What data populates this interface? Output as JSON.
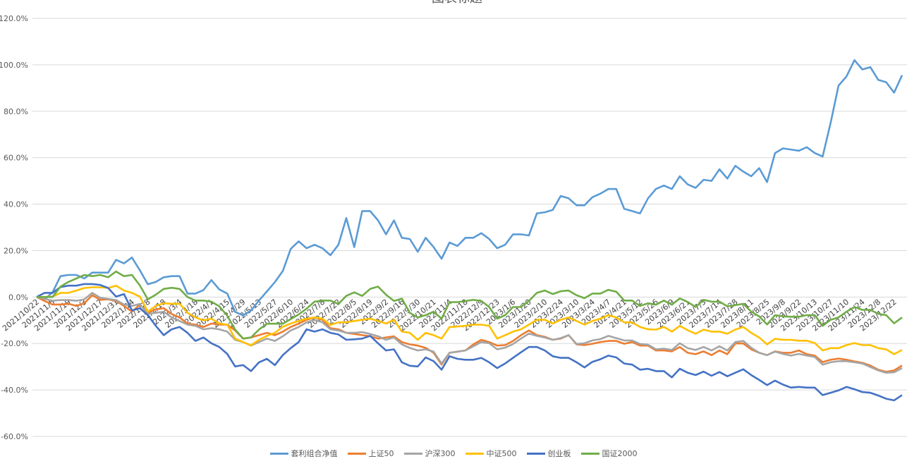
{
  "chart_data": {
    "type": "line",
    "title": "图表标题",
    "xlabel": "",
    "ylabel": "",
    "ylim": [
      -60,
      120
    ],
    "y_ticks": [
      "-60.0%",
      "-40.0%",
      "-20.0%",
      "0.0%",
      "20.0%",
      "40.0%",
      "60.0%",
      "80.0%",
      "100.0%",
      "120.0%"
    ],
    "y_tick_values": [
      -60,
      -40,
      -20,
      0,
      20,
      40,
      60,
      80,
      100,
      120
    ],
    "grid": true,
    "legend_position": "bottom",
    "categories": [
      "2021/10/22",
      "",
      "2021/11/5",
      "",
      "2021/11/19",
      "",
      "2021/12/3",
      "",
      "2021/12/17",
      "",
      "2021/12/31",
      "",
      "2022/1/14",
      "",
      "2022/1/28",
      "",
      "2022/2/18",
      "",
      "2022/3/4",
      "",
      "2022/3/18",
      "",
      "2022/4/1",
      "",
      "2022/4/15",
      "",
      "2022/4/29",
      "",
      "2022/5/13",
      "",
      "2022/5/27",
      "",
      "2022/6/10",
      "",
      "2022/6/24",
      "",
      "2022/7/8",
      "",
      "2022/7/22",
      "",
      "2022/8/5",
      "",
      "2022/8/19",
      "",
      "2022/9/2",
      "",
      "2022/9/16",
      "",
      "2022/9/30",
      "",
      "2022/10/21",
      "",
      "2022/11/4",
      "",
      "2022/11/18",
      "",
      "2022/12/9",
      "",
      "2022/12/23",
      "",
      "2023/1/6",
      "",
      "2023/1/20",
      "",
      "2023/2/10",
      "",
      "2023/2/24",
      "",
      "2023/3/10",
      "",
      "2023/3/24",
      "",
      "2023/4/7",
      "",
      "2023/4/21",
      "",
      "2023/5/12",
      "",
      "2023/5/26",
      "",
      "2023/6/9",
      "",
      "2023/6/21",
      "",
      "2023/7/3",
      "",
      "2023/7/14",
      "",
      "2023/7/28",
      "",
      "2023/8/11",
      "",
      "2023/8/25",
      "",
      "2023/9/8",
      "",
      "2023/9/22",
      "",
      "2023/10/13",
      "",
      "2023/10/27",
      "",
      "2023/11/10",
      "",
      "2023/11/24",
      "",
      "2023/12/8",
      "",
      "2023/12/22",
      ""
    ],
    "series": [
      {
        "name": "套利组合净值",
        "color": "#5B9BD5",
        "values": [
          0,
          -1,
          2,
          9,
          9.5,
          9.5,
          8,
          10.5,
          10.5,
          10.5,
          16,
          14.5,
          17,
          11.5,
          5.5,
          6.5,
          8.5,
          9,
          9,
          1.5,
          1.5,
          3,
          7.3,
          3.3,
          1.5,
          -6.4,
          -7.9,
          -5.8,
          -1.5,
          2.4,
          6.4,
          11.2,
          20.7,
          24,
          21,
          22.5,
          21,
          18,
          22.5,
          34,
          21.5,
          37,
          37,
          33,
          27,
          33,
          25.5,
          25,
          19.5,
          25.5,
          21.5,
          16.5,
          23.5,
          22,
          25.5,
          25.5,
          27.5,
          25,
          21,
          22.5,
          27,
          27,
          26.5,
          36,
          36.5,
          37.5,
          43.5,
          42.5,
          39.5,
          39.5,
          43,
          44.5,
          46.5,
          46.5,
          38,
          37,
          36,
          42.5,
          46.5,
          48,
          46.5,
          52,
          48.5,
          47,
          50.5,
          50,
          55,
          51,
          56.5,
          54,
          52,
          55.5,
          49.5,
          62,
          64,
          63.5,
          63,
          64.5,
          62,
          60.5,
          75,
          91,
          95,
          102,
          98,
          99,
          93.5,
          92.5,
          88,
          95.5
        ]
      },
      {
        "name": "上证50",
        "color": "#ED7D31",
        "values": [
          0,
          -1.7,
          -3.2,
          -3.2,
          -2.9,
          -3.8,
          -2.7,
          0.8,
          -1.2,
          -1,
          -1.7,
          -3.8,
          -6.3,
          -3.2,
          -6.8,
          -5.3,
          -4.8,
          -7.3,
          -8.8,
          -11.4,
          -11.9,
          -12.9,
          -11.4,
          -11.9,
          -11.9,
          -14.4,
          -17.9,
          -17.4,
          -16.4,
          -15.4,
          -16.4,
          -14.9,
          -12.9,
          -11.4,
          -9.8,
          -8.8,
          -9.8,
          -13.4,
          -13.9,
          -15.4,
          -15.9,
          -16.4,
          -16.9,
          -17.9,
          -17.4,
          -16.9,
          -19.4,
          -20.4,
          -20.9,
          -21.9,
          -24,
          -29.1,
          -24,
          -23.5,
          -23,
          -20.4,
          -18.4,
          -19.4,
          -20.9,
          -20.7,
          -18.9,
          -16.4,
          -14.4,
          -16.4,
          -17.1,
          -18.4,
          -17.9,
          -16.4,
          -20.4,
          -20.7,
          -20.1,
          -19.4,
          -18.9,
          -18.9,
          -20.1,
          -19.4,
          -20.9,
          -20.9,
          -23,
          -23,
          -23.4,
          -21.5,
          -24,
          -24.6,
          -23.4,
          -25,
          -23,
          -24.6,
          -20,
          -20,
          -22.5,
          -24,
          -25,
          -23.4,
          -24,
          -24,
          -23,
          -24.6,
          -25.2,
          -28,
          -27,
          -26.5,
          -27,
          -27.7,
          -28.3,
          -29.5,
          -31.3,
          -32.2,
          -31.6,
          -29.5
        ]
      },
      {
        "name": "沪深300",
        "color": "#A5A5A5",
        "values": [
          0,
          -0.8,
          -1.6,
          -1.3,
          -1.3,
          -1.6,
          -1,
          1.8,
          -0.3,
          -0.8,
          -1.3,
          -3.2,
          -3.8,
          -3,
          -7.3,
          -6.8,
          -6.3,
          -8.8,
          -10.3,
          -11.9,
          -12.4,
          -13.9,
          -13.4,
          -13.9,
          -14.9,
          -18.4,
          -19.4,
          -20.9,
          -19.4,
          -17.9,
          -18.9,
          -16.9,
          -14.4,
          -12.9,
          -10.9,
          -9.8,
          -10.9,
          -13.9,
          -14.4,
          -15.4,
          -15.4,
          -15.1,
          -15.9,
          -16.9,
          -18.4,
          -17.4,
          -20.4,
          -21.9,
          -23,
          -22.5,
          -23.5,
          -28.6,
          -24,
          -23.5,
          -23,
          -21.2,
          -19.4,
          -19.9,
          -22.5,
          -21.8,
          -20.2,
          -17.9,
          -15.7,
          -16.7,
          -17.4,
          -18.4,
          -17.7,
          -16.4,
          -20.2,
          -19.9,
          -18.7,
          -18.1,
          -16.7,
          -17.7,
          -18.7,
          -18.7,
          -20.2,
          -20.5,
          -22.5,
          -22.2,
          -22.8,
          -19.9,
          -22,
          -22.8,
          -21.5,
          -23,
          -21.2,
          -23,
          -19.4,
          -18.9,
          -21.8,
          -24,
          -25,
          -23.5,
          -24.5,
          -25.2,
          -24.5,
          -25.2,
          -25.8,
          -29.1,
          -28.1,
          -27.6,
          -27.6,
          -28.1,
          -28.6,
          -30.1,
          -31.6,
          -32.6,
          -32.4,
          -30.6
        ]
      },
      {
        "name": "中证500",
        "color": "#FFC000",
        "values": [
          0,
          0,
          0.2,
          1.8,
          1.8,
          2.8,
          3.9,
          4.2,
          4.2,
          3.9,
          4.9,
          2.8,
          1.8,
          0.2,
          -6.3,
          -3.8,
          -2.7,
          -2.9,
          -2.9,
          -6.8,
          -8.8,
          -10,
          -9.3,
          -11.4,
          -11.9,
          -17.9,
          -19.4,
          -20.8,
          -18.4,
          -16.7,
          -15.4,
          -12.8,
          -11.4,
          -10.3,
          -9.3,
          -8.8,
          -9.3,
          -12,
          -10.9,
          -10.9,
          -10.3,
          -9.8,
          -9.3,
          -10.3,
          -11.4,
          -9.8,
          -14.9,
          -15.4,
          -18.4,
          -15.4,
          -16.4,
          -17.9,
          -12.9,
          -12.7,
          -12.4,
          -11.9,
          -11.9,
          -12.4,
          -17.9,
          -16.4,
          -14.9,
          -13.9,
          -11.9,
          -9.8,
          -9.8,
          -11.4,
          -9.8,
          -8.8,
          -10.3,
          -11.9,
          -10.3,
          -9.3,
          -7.8,
          -8.8,
          -10.9,
          -10.9,
          -12.9,
          -13.9,
          -14,
          -12.9,
          -14.9,
          -12.4,
          -14.3,
          -15.8,
          -14,
          -14.9,
          -14.9,
          -15.8,
          -14,
          -12.9,
          -15.4,
          -17.4,
          -20.4,
          -18,
          -18.4,
          -18.4,
          -18.8,
          -18.8,
          -19.8,
          -23,
          -22,
          -22,
          -20.7,
          -19.8,
          -20.7,
          -20.7,
          -22,
          -22.5,
          -24.6,
          -22.8
        ]
      },
      {
        "name": "创业板",
        "color": "#4472C4",
        "values": [
          0,
          1.8,
          1.8,
          4.3,
          4.9,
          4.9,
          5.6,
          5.6,
          5.2,
          3.9,
          0.2,
          1.3,
          -5.8,
          -4.8,
          -7.8,
          -12.4,
          -16.4,
          -13.9,
          -12.9,
          -15.4,
          -18.9,
          -17.4,
          -19.9,
          -21.5,
          -24.5,
          -29.9,
          -29.3,
          -31.9,
          -28.1,
          -26.6,
          -29.3,
          -25,
          -22,
          -19.4,
          -13.9,
          -14.9,
          -13.9,
          -15.4,
          -16.1,
          -18.4,
          -18.2,
          -17.9,
          -16.7,
          -19.9,
          -23,
          -22.5,
          -28.1,
          -29.6,
          -29.9,
          -26,
          -27.6,
          -31.3,
          -25.5,
          -26.6,
          -27,
          -27,
          -26.2,
          -28.1,
          -30.6,
          -28.6,
          -26.2,
          -23.8,
          -21.5,
          -21.5,
          -23,
          -25.5,
          -26.2,
          -26.2,
          -28.1,
          -30.3,
          -27.9,
          -26.8,
          -25.2,
          -26,
          -28.6,
          -29.1,
          -31.3,
          -30.9,
          -31.9,
          -31.9,
          -34.6,
          -30.9,
          -32.6,
          -33.6,
          -32.1,
          -33.9,
          -32.3,
          -34.1,
          -32.6,
          -31.1,
          -33.6,
          -35.7,
          -37.9,
          -36,
          -37.7,
          -39,
          -38.7,
          -39,
          -39,
          -42.2,
          -41.2,
          -40.2,
          -38.7,
          -39.7,
          -40.9,
          -41.2,
          -42.4,
          -43.8,
          -44.5,
          -42.2
        ]
      },
      {
        "name": "国证2000",
        "color": "#70AD47",
        "values": [
          0,
          0,
          0,
          4.5,
          6.5,
          8,
          9.5,
          9,
          9.5,
          8.5,
          11,
          9,
          9.5,
          5,
          -1,
          1,
          3.5,
          4,
          3.5,
          0,
          -1.5,
          -1.5,
          -2,
          -4,
          -8,
          -14,
          -17.9,
          -17.4,
          -14,
          -11.5,
          -11.5,
          -11.5,
          -9.5,
          -7.5,
          -5,
          -2,
          -1.5,
          -1.5,
          -3,
          0.5,
          2,
          0.5,
          3.5,
          4.5,
          1,
          -1.7,
          -0.7,
          -6.8,
          -8.8,
          -7.8,
          -6.3,
          -9.3,
          -2.2,
          -2.2,
          -1.7,
          -1.2,
          -1.7,
          -4.3,
          -9.3,
          -7.8,
          -4.3,
          -4.3,
          -1.7,
          1.8,
          2.8,
          1.3,
          2.5,
          2.8,
          0.8,
          -0.5,
          1.5,
          1.5,
          3.1,
          2.3,
          -1.5,
          -1.5,
          -3.8,
          -2.7,
          -3.3,
          -1.5,
          -3.3,
          -0.6,
          -2.1,
          -4.3,
          -1.2,
          -2,
          -2,
          -4,
          -3.5,
          -2.9,
          -6.3,
          -8.3,
          -11.8,
          -7.8,
          -8.3,
          -8.5,
          -8.5,
          -7.8,
          -7.8,
          -12.4,
          -9.8,
          -8.8,
          -6.3,
          -4.3,
          -5.5,
          -5.5,
          -7.2,
          -7.8,
          -11.3,
          -8.8
        ]
      }
    ]
  }
}
